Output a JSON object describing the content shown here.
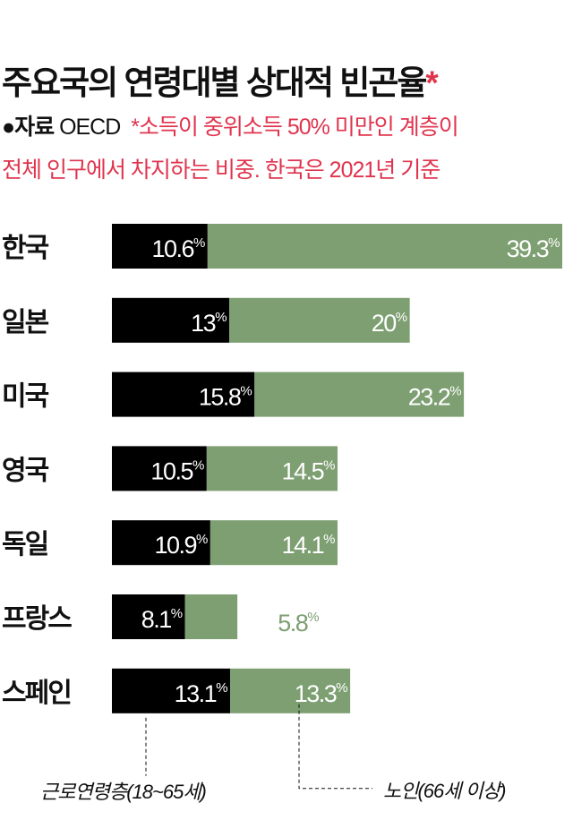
{
  "title": "주요국의 연령대별 상대적 빈곤율",
  "title_mark": "*",
  "source_label": "●자료",
  "source": "OECD",
  "note_line1": "*소득이 중위소득 50% 미만인 계층이",
  "note_line2": "전체 인구에서 차지하는 비중. 한국은 2021년 기준",
  "colors": {
    "working": "#000000",
    "elderly": "#7d9f72",
    "accent": "#e0344e"
  },
  "chart_data": {
    "type": "bar",
    "orientation": "horizontal",
    "stacked": true,
    "unit": "%",
    "categories": [
      "한국",
      "일본",
      "미국",
      "영국",
      "독일",
      "프랑스",
      "스페인"
    ],
    "series": [
      {
        "name": "근로연령층(18~65세)",
        "values": [
          10.6,
          13,
          15.8,
          10.5,
          10.9,
          8.1,
          13.1
        ],
        "labels": [
          "10.6",
          "13",
          "15.8",
          "10.5",
          "10.9",
          "8.1",
          "13.1"
        ]
      },
      {
        "name": "노인(66세 이상)",
        "values": [
          39.3,
          20,
          23.2,
          14.5,
          14.1,
          5.8,
          13.3
        ],
        "labels": [
          "39.3",
          "20",
          "23.2",
          "14.5",
          "14.1",
          "5.8",
          "13.3"
        ]
      }
    ],
    "grid": false,
    "legend": "bottom"
  }
}
